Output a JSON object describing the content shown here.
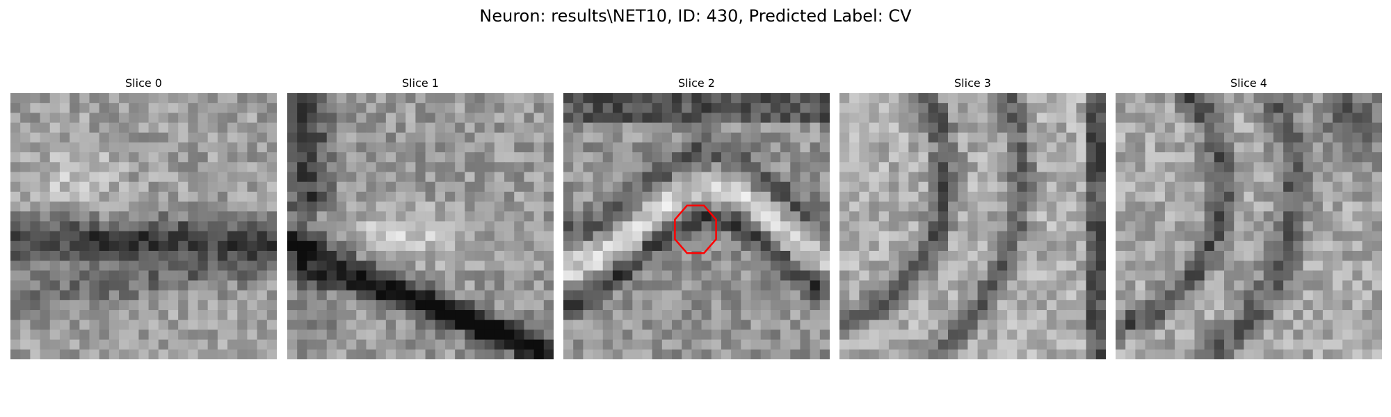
{
  "figure": {
    "title": "Neuron: results\\NET10, ID: 430, Predicted Label: CV"
  },
  "panels": [
    {
      "title": "Slice 0",
      "seed": 11,
      "pattern": "noise",
      "roi": false
    },
    {
      "title": "Slice 1",
      "seed": 23,
      "pattern": "branch",
      "roi": false
    },
    {
      "title": "Slice 2",
      "seed": 37,
      "pattern": "band",
      "roi": true
    },
    {
      "title": "Slice 3",
      "seed": 51,
      "pattern": "arc",
      "roi": false
    },
    {
      "title": "Slice 4",
      "seed": 67,
      "pattern": "arc2",
      "roi": false
    }
  ],
  "roi": {
    "color": "#ff0000",
    "shape": "octagon"
  },
  "colormap": "gray",
  "grid_size": 27
}
